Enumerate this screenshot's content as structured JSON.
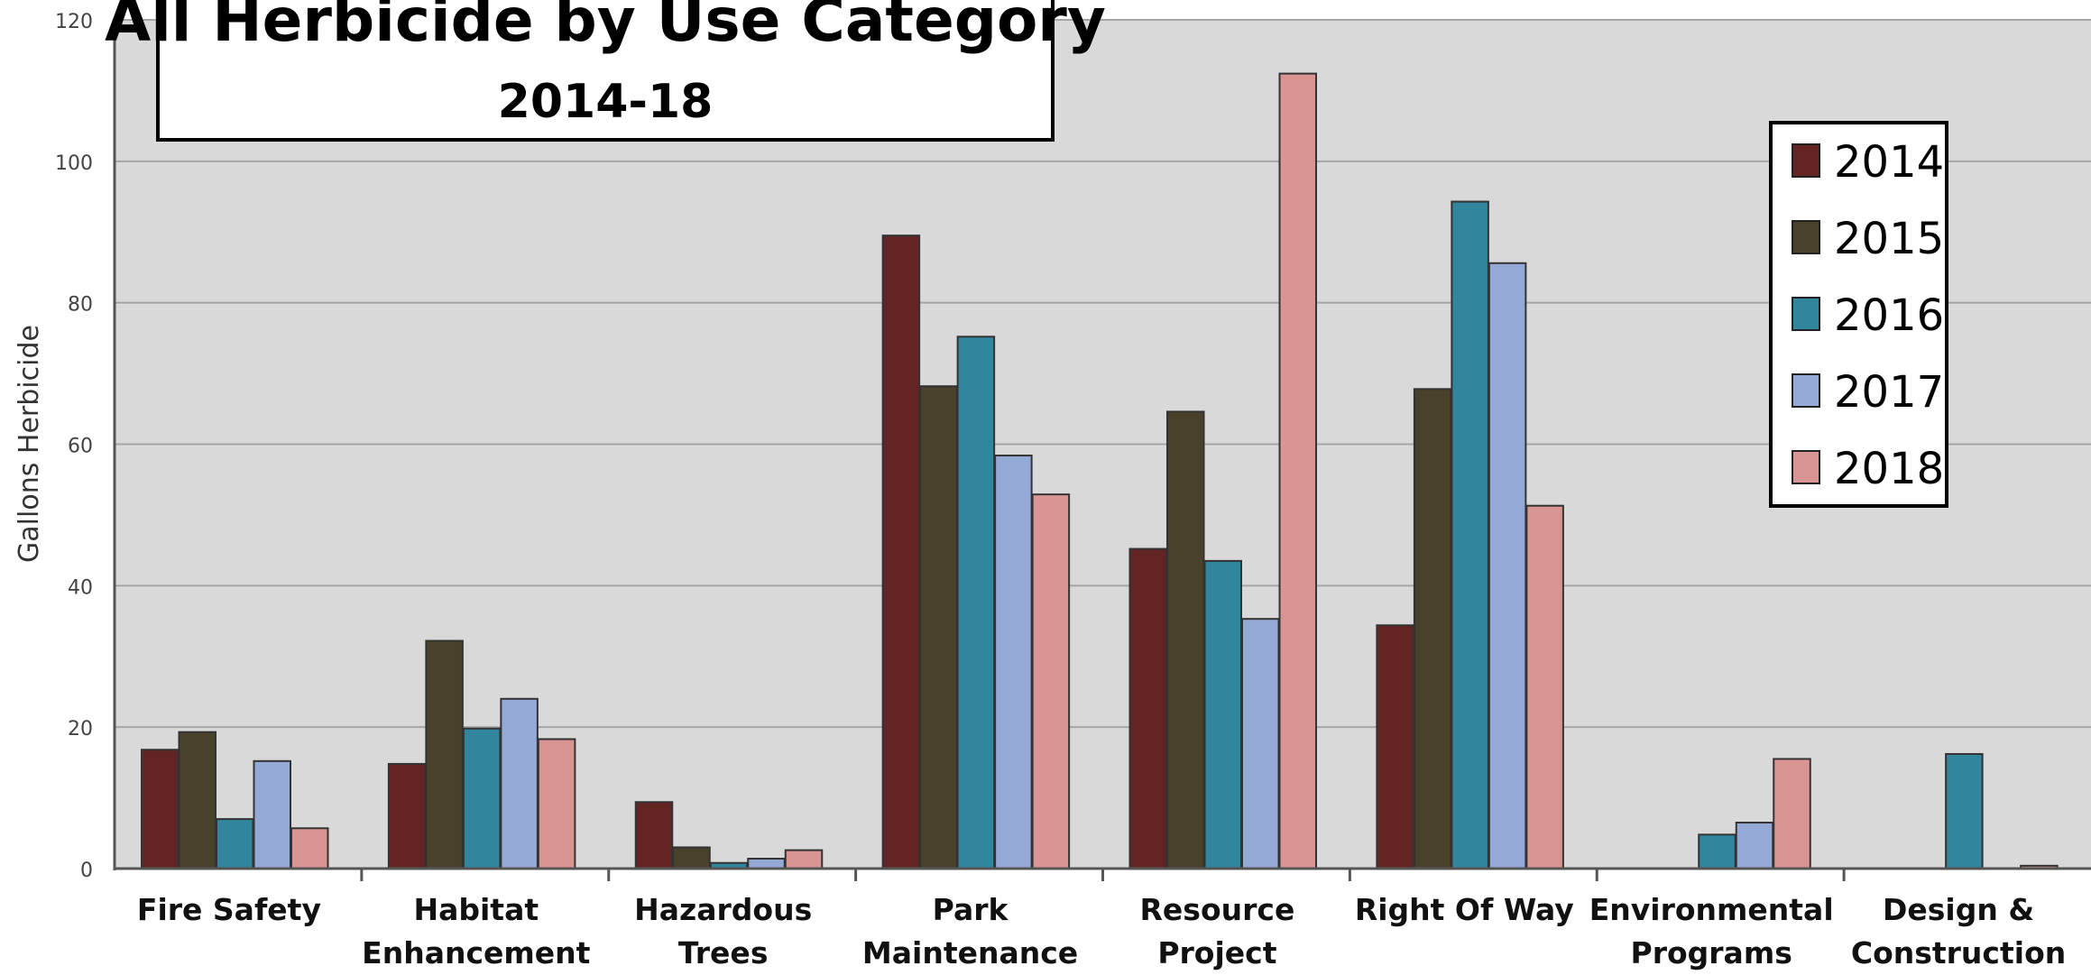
{
  "chart_data": {
    "type": "bar",
    "title": "All Herbicide by Use Category",
    "subtitle": "2014-18",
    "xlabel": "",
    "ylabel": "Gallons Herbicide",
    "ylim": [
      0,
      120
    ],
    "yticks": [
      0,
      20,
      40,
      60,
      80,
      100,
      120
    ],
    "grid": true,
    "legend_position": "top-right",
    "categories": [
      [
        "Fire Safety"
      ],
      [
        "Habitat",
        "Enhancement"
      ],
      [
        "Hazardous",
        "Trees"
      ],
      [
        "Park",
        "Maintenance"
      ],
      [
        "Resource",
        "Project"
      ],
      [
        "Right Of Way"
      ],
      [
        "Environmental",
        "Programs"
      ],
      [
        "Design &",
        "Construction"
      ]
    ],
    "series": [
      {
        "name": "2014",
        "color": "#632523",
        "values": [
          16.8,
          14.8,
          9.4,
          89.5,
          45.2,
          34.4,
          0,
          0
        ]
      },
      {
        "name": "2015",
        "color": "#4a412a",
        "values": [
          19.3,
          32.2,
          3.0,
          68.2,
          64.6,
          67.8,
          0,
          0
        ]
      },
      {
        "name": "2016",
        "color": "#31859c",
        "values": [
          7.0,
          19.8,
          0.8,
          75.2,
          43.5,
          94.3,
          4.8,
          16.2
        ]
      },
      {
        "name": "2017",
        "color": "#95a9d6",
        "values": [
          15.2,
          24.0,
          1.4,
          58.4,
          35.3,
          85.6,
          6.5,
          0
        ]
      },
      {
        "name": "2018",
        "color": "#d99594",
        "values": [
          5.7,
          18.3,
          2.6,
          52.9,
          112.4,
          51.3,
          15.5,
          0.4
        ]
      }
    ]
  }
}
